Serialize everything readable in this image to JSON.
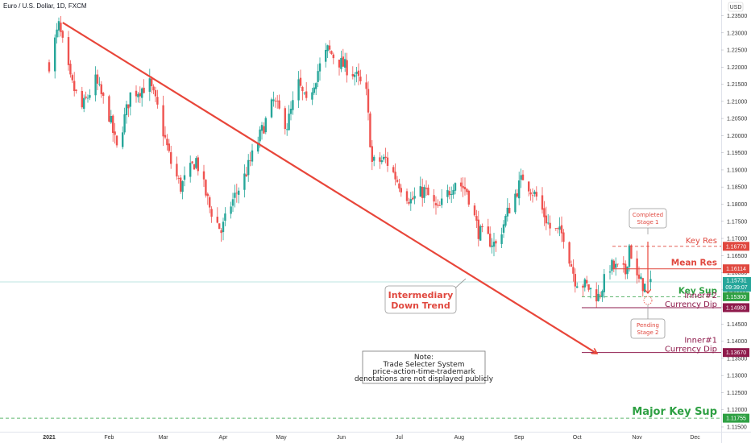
{
  "header": {
    "title": "Euro / U.S. Dollar, 1D, FXCM",
    "currency": "USD"
  },
  "colors": {
    "up": "#26a69a",
    "down": "#ef5350",
    "trend": "#e8463a",
    "key_sup": "#2ea043",
    "inner": "#8e1a4b"
  },
  "chart_data": {
    "type": "candlestick",
    "yaxis": {
      "ylim": [
        1.1125,
        1.2365
      ],
      "ticks": [
        "1.23500",
        "1.23000",
        "1.22500",
        "1.22000",
        "1.21500",
        "1.21000",
        "1.20500",
        "1.20000",
        "1.19500",
        "1.19000",
        "1.18500",
        "1.18000",
        "1.17500",
        "1.17000",
        "1.16500",
        "1.16000",
        "1.15500",
        "1.15000",
        "1.14500",
        "1.14000",
        "1.13500",
        "1.13000",
        "1.12500",
        "1.12000",
        "1.11500"
      ]
    },
    "xaxis": {
      "labels": [
        "2021",
        "Feb",
        "Mar",
        "Apr",
        "May",
        "Jun",
        "Jul",
        "Aug",
        "Sep",
        "Oct",
        "Nov",
        "Dec"
      ]
    },
    "anchors": [
      {
        "date": "2021-01-01",
        "v": 1.221
      },
      {
        "date": "2021-01-06",
        "v": 1.232
      },
      {
        "date": "2021-01-12",
        "v": 1.216
      },
      {
        "date": "2021-01-18",
        "v": 1.208
      },
      {
        "date": "2021-01-25",
        "v": 1.216
      },
      {
        "date": "2021-02-01",
        "v": 1.206
      },
      {
        "date": "2021-02-05",
        "v": 1.196
      },
      {
        "date": "2021-02-12",
        "v": 1.212
      },
      {
        "date": "2021-02-22",
        "v": 1.215
      },
      {
        "date": "2021-02-26",
        "v": 1.208
      },
      {
        "date": "2021-03-05",
        "v": 1.192
      },
      {
        "date": "2021-03-10",
        "v": 1.185
      },
      {
        "date": "2021-03-18",
        "v": 1.193
      },
      {
        "date": "2021-03-25",
        "v": 1.179
      },
      {
        "date": "2021-03-31",
        "v": 1.172
      },
      {
        "date": "2021-04-05",
        "v": 1.18
      },
      {
        "date": "2021-04-12",
        "v": 1.188
      },
      {
        "date": "2021-04-20",
        "v": 1.2
      },
      {
        "date": "2021-04-27",
        "v": 1.21
      },
      {
        "date": "2021-05-04",
        "v": 1.203
      },
      {
        "date": "2021-05-10",
        "v": 1.215
      },
      {
        "date": "2021-05-14",
        "v": 1.209
      },
      {
        "date": "2021-05-20",
        "v": 1.219
      },
      {
        "date": "2021-05-25",
        "v": 1.225
      },
      {
        "date": "2021-06-01",
        "v": 1.221
      },
      {
        "date": "2021-06-08",
        "v": 1.218
      },
      {
        "date": "2021-06-14",
        "v": 1.212
      },
      {
        "date": "2021-06-17",
        "v": 1.192
      },
      {
        "date": "2021-06-24",
        "v": 1.193
      },
      {
        "date": "2021-06-30",
        "v": 1.187
      },
      {
        "date": "2021-07-07",
        "v": 1.181
      },
      {
        "date": "2021-07-14",
        "v": 1.184
      },
      {
        "date": "2021-07-21",
        "v": 1.178
      },
      {
        "date": "2021-07-30",
        "v": 1.187
      },
      {
        "date": "2021-08-05",
        "v": 1.184
      },
      {
        "date": "2021-08-11",
        "v": 1.172
      },
      {
        "date": "2021-08-20",
        "v": 1.168
      },
      {
        "date": "2021-08-27",
        "v": 1.179
      },
      {
        "date": "2021-09-03",
        "v": 1.188
      },
      {
        "date": "2021-09-10",
        "v": 1.182
      },
      {
        "date": "2021-09-17",
        "v": 1.173
      },
      {
        "date": "2021-09-24",
        "v": 1.171
      },
      {
        "date": "2021-09-30",
        "v": 1.158
      },
      {
        "date": "2021-10-06",
        "v": 1.156
      },
      {
        "date": "2021-10-12",
        "v": 1.153
      },
      {
        "date": "2021-10-18",
        "v": 1.162
      },
      {
        "date": "2021-10-26",
        "v": 1.16
      },
      {
        "date": "2021-10-28",
        "v": 1.168
      },
      {
        "date": "2021-11-01",
        "v": 1.158
      },
      {
        "date": "2021-11-05",
        "v": 1.156
      },
      {
        "date": "2021-11-08",
        "v": 1.1573
      }
    ],
    "trendline": {
      "from": {
        "date": "2021-01-08",
        "v": 1.233
      },
      "to": {
        "date": "2021-10-11",
        "v": 1.1365
      }
    },
    "levels": [
      {
        "name": "key-res",
        "label": "Key Res",
        "value": 1.1677,
        "tag": "1.16770",
        "style": "dashed",
        "color": "#e0483f",
        "tagbg": "#e0483f"
      },
      {
        "name": "mean-res",
        "label": "Mean Res",
        "value": 1.16114,
        "tag": "1.16114",
        "style": "solid",
        "color": "#e0483f",
        "tagbg": "#e0483f"
      },
      {
        "name": "key-sup",
        "label": "Key Sup",
        "value": 1.153,
        "tag": "1.15300",
        "style": "dashed",
        "color": "#2ea043",
        "tagbg": "#2ea043"
      },
      {
        "name": "inner2",
        "label": "Inner#2",
        "label2": "Currency Dip",
        "value": 1.1498,
        "tag": "1.14980",
        "style": "solid",
        "color": "#8e1a4b",
        "tagbg": "#8e1a4b"
      },
      {
        "name": "inner1",
        "label": "Inner#1",
        "label2": "Currency Dip",
        "value": 1.1367,
        "tag": "1.13670",
        "style": "solid",
        "color": "#8e1a4b",
        "tagbg": "#8e1a4b"
      },
      {
        "name": "major-key-sup",
        "label": "Major Key Sup",
        "value": 1.11755,
        "tag": "1.11755",
        "style": "dashed",
        "color": "#2ea043",
        "tagbg": "#2ea043"
      }
    ],
    "current_price": {
      "value": 1.15731,
      "tag": "1.15731",
      "countdown": "09:39:07"
    }
  },
  "annotations": {
    "intermediary": [
      "Intermediary",
      "Down Trend"
    ],
    "completed": [
      "Completed",
      "Stage 1"
    ],
    "pending": [
      "Pending",
      "Stage 2"
    ],
    "note": [
      "Note:",
      "Trade Selecter System",
      "price-action-time-trademark",
      "denotations are not displayed publicly"
    ]
  }
}
